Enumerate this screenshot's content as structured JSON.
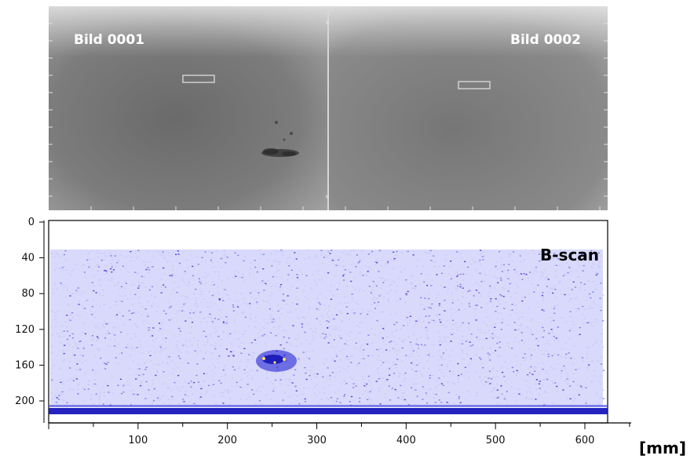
{
  "xray": {
    "left_label": "Bild 0001",
    "right_label": "Bild 0002"
  },
  "bscan": {
    "title": "B-scan",
    "unit": "[mm]",
    "y_ticks": [
      "0",
      "40",
      "80",
      "120",
      "160",
      "200"
    ],
    "x_ticks": [
      "100",
      "200",
      "300",
      "400",
      "500",
      "600"
    ]
  },
  "colors": {
    "speckle_light": "#c9c9f5",
    "speckle_mid": "#6f6fe8",
    "speckle_dark": "#1a1ad0",
    "backwall": "#0b0bb8"
  }
}
